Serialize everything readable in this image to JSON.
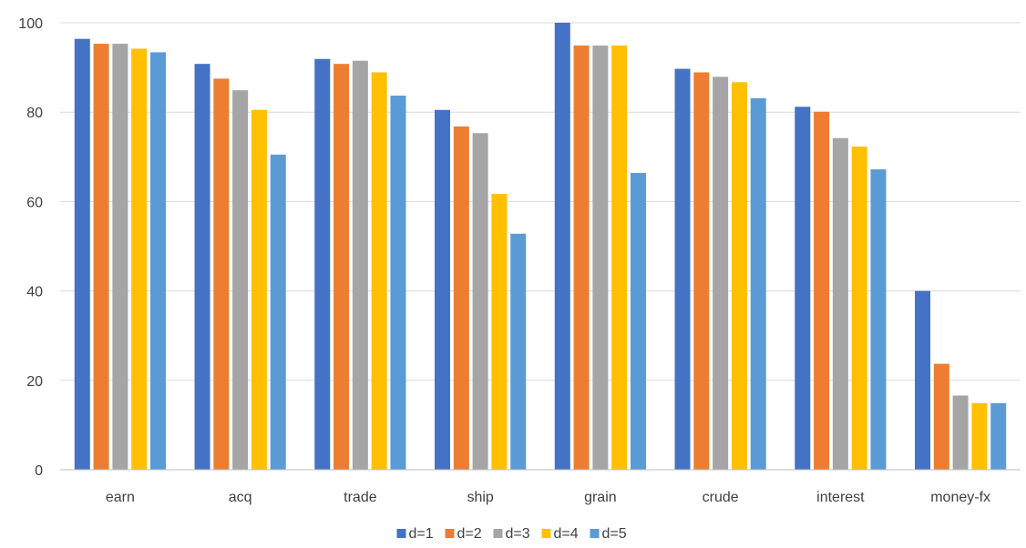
{
  "chart_data": {
    "type": "bar",
    "title": "",
    "xlabel": "",
    "ylabel": "",
    "ylim": [
      0,
      100
    ],
    "yticks": [
      0,
      20,
      40,
      60,
      80,
      100
    ],
    "grid": true,
    "legend_position": "bottom",
    "categories": [
      "earn",
      "acq",
      "trade",
      "ship",
      "grain",
      "crude",
      "interest",
      "money-fx"
    ],
    "series": [
      {
        "name": "d=1",
        "color": "#4472C4",
        "values": [
          96.4,
          90.8,
          91.9,
          80.5,
          100,
          89.7,
          81.2,
          40
        ]
      },
      {
        "name": "d=2",
        "color": "#ED7D31",
        "values": [
          95.3,
          87.5,
          90.8,
          76.8,
          94.9,
          88.9,
          80.1,
          23.7
        ]
      },
      {
        "name": "d=3",
        "color": "#A5A5A5",
        "values": [
          95.3,
          84.9,
          91.5,
          75.3,
          94.9,
          87.9,
          74.2,
          16.6
        ]
      },
      {
        "name": "d=4",
        "color": "#FFC000",
        "values": [
          94.2,
          80.5,
          88.9,
          61.7,
          94.9,
          86.7,
          72.3,
          14.9
        ]
      },
      {
        "name": "d=5",
        "color": "#5B9BD5",
        "values": [
          93.4,
          70.5,
          83.7,
          52.8,
          66.4,
          83.1,
          67.2,
          14.9
        ]
      }
    ]
  }
}
